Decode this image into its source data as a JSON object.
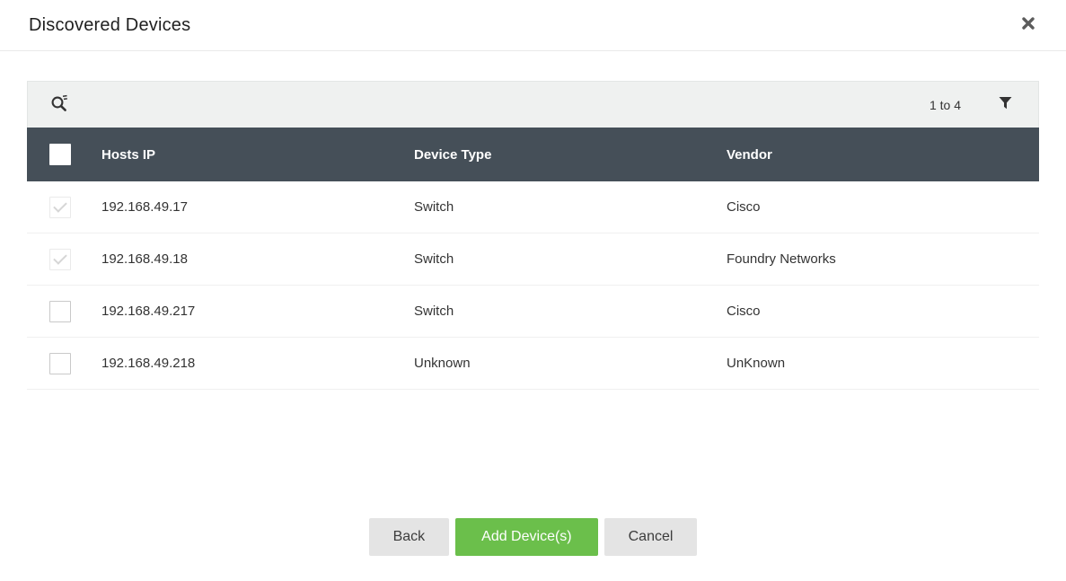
{
  "modal": {
    "title": "Discovered Devices",
    "close_icon": "close-icon"
  },
  "toolbar": {
    "search_icon": "search-icon",
    "pagination": "1 to 4",
    "filter_icon": "filter-icon"
  },
  "table": {
    "columns": [
      "Hosts IP",
      "Device Type",
      "Vendor"
    ],
    "rows": [
      {
        "hosts_ip": "192.168.49.17",
        "device_type": "Switch",
        "vendor": "Cisco",
        "checked": true,
        "disabled": true
      },
      {
        "hosts_ip": "192.168.49.18",
        "device_type": "Switch",
        "vendor": "Foundry Networks",
        "checked": true,
        "disabled": true
      },
      {
        "hosts_ip": "192.168.49.217",
        "device_type": "Switch",
        "vendor": "Cisco",
        "checked": false,
        "disabled": false
      },
      {
        "hosts_ip": "192.168.49.218",
        "device_type": "Unknown",
        "vendor": "UnKnown",
        "checked": false,
        "disabled": false
      }
    ]
  },
  "footer": {
    "back_label": "Back",
    "add_label": "Add Device(s)",
    "cancel_label": "Cancel"
  },
  "colors": {
    "header_bg": "#454f58",
    "toolbar_bg": "#eff1f0",
    "accent_green": "#6bbf4b",
    "button_gray": "#e4e4e4",
    "row_text": "#333333"
  }
}
